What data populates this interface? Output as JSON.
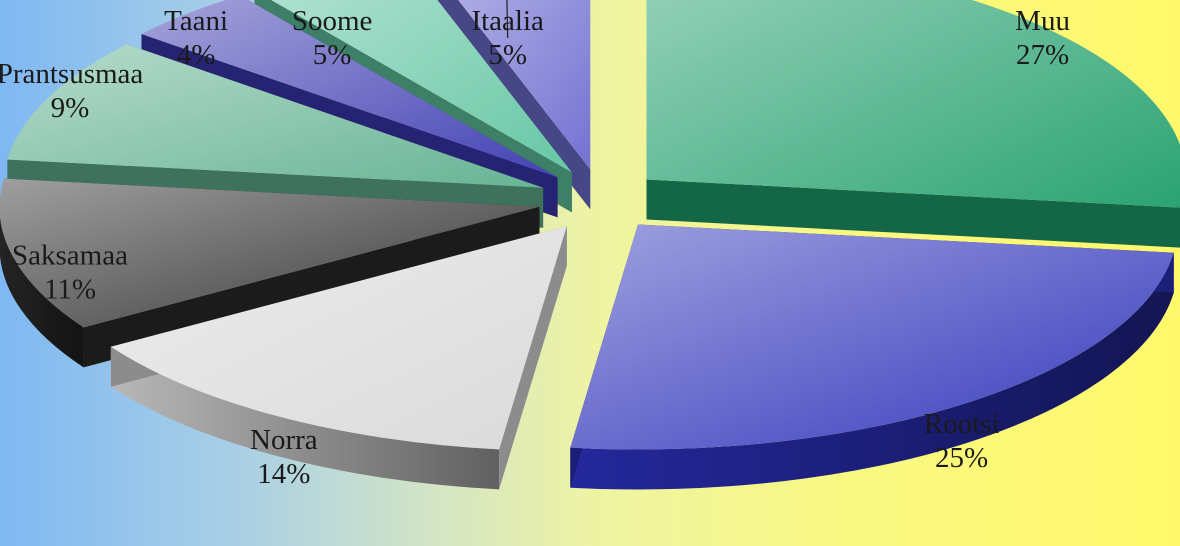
{
  "chart_data": {
    "type": "pie",
    "title": "",
    "categories": [
      "Muu",
      "Rootsi",
      "Norra",
      "Saksamaa",
      "Prantsusmaa",
      "Taani",
      "Soome",
      "Itaalia"
    ],
    "values": [
      27,
      25,
      14,
      11,
      9,
      4,
      5,
      5
    ],
    "value_labels": [
      "27%",
      "25%",
      "14%",
      "11%",
      "9%",
      "4%",
      "5%",
      "5%"
    ],
    "colors": [
      "#1f9e6b",
      "#2a2fb8",
      "#d8d8d8",
      "#2a2a2a",
      "#5fb08e",
      "#3a38b0",
      "#5fc4a0",
      "#6d6bd0"
    ],
    "style": "3d-exploded",
    "legend": "none"
  }
}
